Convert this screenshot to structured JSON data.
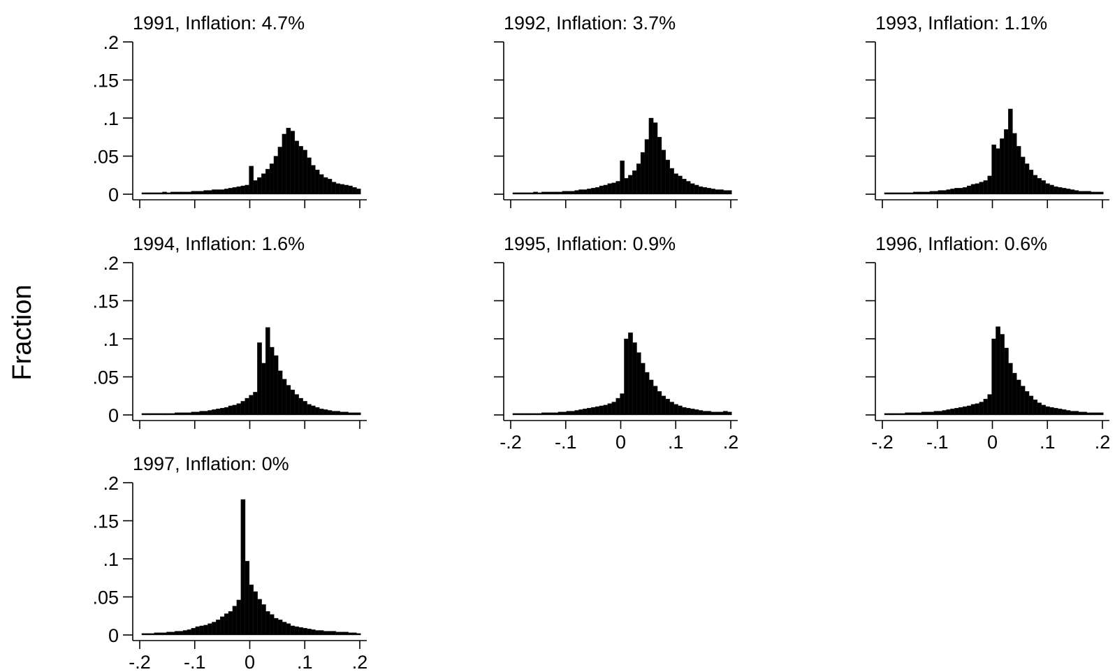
{
  "figure": {
    "ylabel": "Fraction"
  },
  "chart_data": [
    {
      "type": "bar",
      "title": "1991, Inflation: 4.7%",
      "xlim": [
        -0.2,
        0.2
      ],
      "ylim": [
        0,
        0.2
      ],
      "xticks": [
        -0.2,
        -0.1,
        0,
        0.1,
        0.2
      ],
      "xtick_labels": [
        "",
        "",
        "",
        "",
        ""
      ],
      "yticks": [
        0,
        0.05,
        0.1,
        0.15,
        0.2
      ],
      "ytick_labels": [
        "0",
        ".05",
        ".1",
        ".15",
        ".2"
      ],
      "bin_width": 0.0075,
      "x": [
        -0.1925,
        -0.185,
        -0.1775,
        -0.17,
        -0.1625,
        -0.155,
        -0.1475,
        -0.14,
        -0.1325,
        -0.125,
        -0.1175,
        -0.11,
        -0.1025,
        -0.095,
        -0.0875,
        -0.08,
        -0.0725,
        -0.065,
        -0.0575,
        -0.05,
        -0.0425,
        -0.035,
        -0.0275,
        -0.02,
        -0.0125,
        -0.005,
        0.0025,
        0.01,
        0.0175,
        0.025,
        0.0325,
        0.04,
        0.0475,
        0.055,
        0.0625,
        0.07,
        0.0775,
        0.085,
        0.0925,
        0.1,
        0.1075,
        0.115,
        0.1225,
        0.13,
        0.1375,
        0.145,
        0.1525,
        0.16,
        0.1675,
        0.175,
        0.1825,
        0.19,
        0.1975
      ],
      "values": [
        0.002,
        0.002,
        0.002,
        0.002,
        0.002,
        0.003,
        0.002,
        0.003,
        0.003,
        0.003,
        0.003,
        0.003,
        0.004,
        0.004,
        0.004,
        0.005,
        0.005,
        0.006,
        0.006,
        0.006,
        0.007,
        0.008,
        0.009,
        0.01,
        0.011,
        0.012,
        0.037,
        0.018,
        0.022,
        0.027,
        0.033,
        0.04,
        0.05,
        0.062,
        0.079,
        0.087,
        0.083,
        0.07,
        0.063,
        0.058,
        0.048,
        0.038,
        0.032,
        0.026,
        0.022,
        0.02,
        0.016,
        0.014,
        0.013,
        0.012,
        0.011,
        0.009,
        0.007
      ]
    },
    {
      "type": "bar",
      "title": "1992, Inflation: 3.7%",
      "xlim": [
        -0.2,
        0.2
      ],
      "ylim": [
        0,
        0.2
      ],
      "xticks": [
        -0.2,
        -0.1,
        0,
        0.1,
        0.2
      ],
      "xtick_labels": [
        "",
        "",
        "",
        "",
        ""
      ],
      "yticks": [
        0,
        0.05,
        0.1,
        0.15,
        0.2
      ],
      "ytick_labels": [
        "",
        "",
        "",
        "",
        ""
      ],
      "bin_width": 0.0075,
      "x": [
        -0.1925,
        -0.185,
        -0.1775,
        -0.17,
        -0.1625,
        -0.155,
        -0.1475,
        -0.14,
        -0.1325,
        -0.125,
        -0.1175,
        -0.11,
        -0.1025,
        -0.095,
        -0.0875,
        -0.08,
        -0.0725,
        -0.065,
        -0.0575,
        -0.05,
        -0.0425,
        -0.035,
        -0.0275,
        -0.02,
        -0.0125,
        -0.005,
        0.0025,
        0.01,
        0.0175,
        0.025,
        0.0325,
        0.04,
        0.0475,
        0.055,
        0.0625,
        0.07,
        0.0775,
        0.085,
        0.0925,
        0.1,
        0.1075,
        0.115,
        0.1225,
        0.13,
        0.1375,
        0.145,
        0.1525,
        0.16,
        0.1675,
        0.175,
        0.1825,
        0.19,
        0.1975
      ],
      "values": [
        0.002,
        0.002,
        0.002,
        0.002,
        0.002,
        0.003,
        0.002,
        0.003,
        0.003,
        0.003,
        0.003,
        0.003,
        0.004,
        0.004,
        0.004,
        0.005,
        0.006,
        0.006,
        0.007,
        0.008,
        0.009,
        0.011,
        0.012,
        0.014,
        0.015,
        0.017,
        0.044,
        0.021,
        0.025,
        0.031,
        0.04,
        0.055,
        0.072,
        0.1,
        0.094,
        0.075,
        0.058,
        0.045,
        0.034,
        0.027,
        0.024,
        0.02,
        0.017,
        0.014,
        0.012,
        0.01,
        0.009,
        0.008,
        0.007,
        0.006,
        0.006,
        0.005,
        0.005
      ]
    },
    {
      "type": "bar",
      "title": "1993, Inflation: 1.1%",
      "xlim": [
        -0.2,
        0.2
      ],
      "ylim": [
        0,
        0.2
      ],
      "xticks": [
        -0.2,
        -0.1,
        0,
        0.1,
        0.2
      ],
      "xtick_labels": [
        "",
        "",
        "",
        "",
        ""
      ],
      "yticks": [
        0,
        0.05,
        0.1,
        0.15,
        0.2
      ],
      "ytick_labels": [
        "",
        "",
        "",
        "",
        ""
      ],
      "bin_width": 0.0075,
      "x": [
        -0.1925,
        -0.185,
        -0.1775,
        -0.17,
        -0.1625,
        -0.155,
        -0.1475,
        -0.14,
        -0.1325,
        -0.125,
        -0.1175,
        -0.11,
        -0.1025,
        -0.095,
        -0.0875,
        -0.08,
        -0.0725,
        -0.065,
        -0.0575,
        -0.05,
        -0.0425,
        -0.035,
        -0.0275,
        -0.02,
        -0.0125,
        -0.005,
        0.0025,
        0.01,
        0.0175,
        0.025,
        0.0325,
        0.04,
        0.0475,
        0.055,
        0.0625,
        0.07,
        0.0775,
        0.085,
        0.0925,
        0.1,
        0.1075,
        0.115,
        0.1225,
        0.13,
        0.1375,
        0.145,
        0.1525,
        0.16,
        0.1675,
        0.175,
        0.1825,
        0.19,
        0.1975
      ],
      "values": [
        0.002,
        0.002,
        0.002,
        0.002,
        0.002,
        0.002,
        0.002,
        0.003,
        0.003,
        0.003,
        0.003,
        0.004,
        0.004,
        0.005,
        0.005,
        0.006,
        0.007,
        0.008,
        0.008,
        0.009,
        0.011,
        0.013,
        0.014,
        0.016,
        0.018,
        0.024,
        0.065,
        0.06,
        0.073,
        0.085,
        0.112,
        0.08,
        0.063,
        0.049,
        0.04,
        0.032,
        0.025,
        0.021,
        0.018,
        0.014,
        0.012,
        0.01,
        0.009,
        0.008,
        0.007,
        0.006,
        0.005,
        0.004,
        0.004,
        0.004,
        0.003,
        0.003,
        0.003
      ]
    },
    {
      "type": "bar",
      "title": "1994, Inflation: 1.6%",
      "xlim": [
        -0.2,
        0.2
      ],
      "ylim": [
        0,
        0.2
      ],
      "xticks": [
        -0.2,
        -0.1,
        0,
        0.1,
        0.2
      ],
      "xtick_labels": [
        "",
        "",
        "",
        "",
        ""
      ],
      "yticks": [
        0,
        0.05,
        0.1,
        0.15,
        0.2
      ],
      "ytick_labels": [
        "0",
        ".05",
        ".1",
        ".15",
        ".2"
      ],
      "bin_width": 0.0075,
      "x": [
        -0.1925,
        -0.185,
        -0.1775,
        -0.17,
        -0.1625,
        -0.155,
        -0.1475,
        -0.14,
        -0.1325,
        -0.125,
        -0.1175,
        -0.11,
        -0.1025,
        -0.095,
        -0.0875,
        -0.08,
        -0.0725,
        -0.065,
        -0.0575,
        -0.05,
        -0.0425,
        -0.035,
        -0.0275,
        -0.02,
        -0.0125,
        -0.005,
        0.0025,
        0.01,
        0.0175,
        0.025,
        0.0325,
        0.04,
        0.0475,
        0.055,
        0.0625,
        0.07,
        0.0775,
        0.085,
        0.0925,
        0.1,
        0.1075,
        0.115,
        0.1225,
        0.13,
        0.1375,
        0.145,
        0.1525,
        0.16,
        0.1675,
        0.175,
        0.1825,
        0.19,
        0.1975
      ],
      "values": [
        0.002,
        0.002,
        0.002,
        0.002,
        0.002,
        0.002,
        0.002,
        0.002,
        0.003,
        0.003,
        0.003,
        0.003,
        0.004,
        0.004,
        0.005,
        0.005,
        0.006,
        0.007,
        0.008,
        0.009,
        0.01,
        0.012,
        0.013,
        0.015,
        0.018,
        0.022,
        0.026,
        0.03,
        0.095,
        0.068,
        0.115,
        0.089,
        0.078,
        0.058,
        0.047,
        0.039,
        0.033,
        0.027,
        0.022,
        0.018,
        0.014,
        0.012,
        0.01,
        0.008,
        0.007,
        0.006,
        0.005,
        0.005,
        0.004,
        0.004,
        0.003,
        0.003,
        0.003
      ]
    },
    {
      "type": "bar",
      "title": "1995, Inflation: 0.9%",
      "xlim": [
        -0.2,
        0.2
      ],
      "ylim": [
        0,
        0.2
      ],
      "xticks": [
        -0.2,
        -0.1,
        0,
        0.1,
        0.2
      ],
      "xtick_labels": [
        "-.2",
        "-.1",
        "0",
        ".1",
        ".2"
      ],
      "yticks": [
        0,
        0.05,
        0.1,
        0.15,
        0.2
      ],
      "ytick_labels": [
        "",
        "",
        "",
        "",
        ""
      ],
      "bin_width": 0.0075,
      "x": [
        -0.1925,
        -0.185,
        -0.1775,
        -0.17,
        -0.1625,
        -0.155,
        -0.1475,
        -0.14,
        -0.1325,
        -0.125,
        -0.1175,
        -0.11,
        -0.1025,
        -0.095,
        -0.0875,
        -0.08,
        -0.0725,
        -0.065,
        -0.0575,
        -0.05,
        -0.0425,
        -0.035,
        -0.0275,
        -0.02,
        -0.0125,
        -0.005,
        0.0025,
        0.01,
        0.0175,
        0.025,
        0.0325,
        0.04,
        0.0475,
        0.055,
        0.0625,
        0.07,
        0.0775,
        0.085,
        0.0925,
        0.1,
        0.1075,
        0.115,
        0.1225,
        0.13,
        0.1375,
        0.145,
        0.1525,
        0.16,
        0.1675,
        0.175,
        0.1825,
        0.19,
        0.1975
      ],
      "values": [
        0.002,
        0.002,
        0.002,
        0.002,
        0.002,
        0.002,
        0.002,
        0.003,
        0.003,
        0.003,
        0.003,
        0.004,
        0.004,
        0.005,
        0.005,
        0.006,
        0.007,
        0.008,
        0.009,
        0.01,
        0.011,
        0.012,
        0.013,
        0.015,
        0.017,
        0.022,
        0.028,
        0.1,
        0.108,
        0.095,
        0.082,
        0.068,
        0.056,
        0.046,
        0.038,
        0.031,
        0.025,
        0.021,
        0.017,
        0.014,
        0.012,
        0.01,
        0.009,
        0.008,
        0.007,
        0.006,
        0.005,
        0.005,
        0.004,
        0.004,
        0.004,
        0.005,
        0.004
      ]
    },
    {
      "type": "bar",
      "title": "1996, Inflation: 0.6%",
      "xlim": [
        -0.2,
        0.2
      ],
      "ylim": [
        0,
        0.2
      ],
      "xticks": [
        -0.2,
        -0.1,
        0,
        0.1,
        0.2
      ],
      "xtick_labels": [
        "-.2",
        "-.1",
        "0",
        ".1",
        ".2"
      ],
      "yticks": [
        0,
        0.05,
        0.1,
        0.15,
        0.2
      ],
      "ytick_labels": [
        "",
        "",
        "",
        "",
        ""
      ],
      "bin_width": 0.0075,
      "x": [
        -0.1925,
        -0.185,
        -0.1775,
        -0.17,
        -0.1625,
        -0.155,
        -0.1475,
        -0.14,
        -0.1325,
        -0.125,
        -0.1175,
        -0.11,
        -0.1025,
        -0.095,
        -0.0875,
        -0.08,
        -0.0725,
        -0.065,
        -0.0575,
        -0.05,
        -0.0425,
        -0.035,
        -0.0275,
        -0.02,
        -0.0125,
        -0.005,
        0.0025,
        0.01,
        0.0175,
        0.025,
        0.0325,
        0.04,
        0.0475,
        0.055,
        0.0625,
        0.07,
        0.0775,
        0.085,
        0.0925,
        0.1,
        0.1075,
        0.115,
        0.1225,
        0.13,
        0.1375,
        0.145,
        0.1525,
        0.16,
        0.1675,
        0.175,
        0.1825,
        0.19,
        0.1975
      ],
      "values": [
        0.002,
        0.002,
        0.002,
        0.002,
        0.002,
        0.003,
        0.003,
        0.003,
        0.003,
        0.004,
        0.004,
        0.004,
        0.005,
        0.005,
        0.006,
        0.007,
        0.008,
        0.009,
        0.01,
        0.011,
        0.012,
        0.014,
        0.015,
        0.017,
        0.021,
        0.027,
        0.1,
        0.116,
        0.106,
        0.088,
        0.068,
        0.055,
        0.046,
        0.038,
        0.031,
        0.025,
        0.02,
        0.016,
        0.013,
        0.011,
        0.01,
        0.009,
        0.008,
        0.007,
        0.006,
        0.005,
        0.005,
        0.004,
        0.004,
        0.003,
        0.003,
        0.003,
        0.003
      ]
    },
    {
      "type": "bar",
      "title": "1997, Inflation: 0%",
      "xlim": [
        -0.2,
        0.2
      ],
      "ylim": [
        0,
        0.2
      ],
      "xticks": [
        -0.2,
        -0.1,
        0,
        0.1,
        0.2
      ],
      "xtick_labels": [
        "-.2",
        "-.1",
        "0",
        ".1",
        ".2"
      ],
      "yticks": [
        0,
        0.05,
        0.1,
        0.15,
        0.2
      ],
      "ytick_labels": [
        "0",
        ".05",
        ".1",
        ".15",
        ".2"
      ],
      "bin_width": 0.0075,
      "x": [
        -0.1925,
        -0.185,
        -0.1775,
        -0.17,
        -0.1625,
        -0.155,
        -0.1475,
        -0.14,
        -0.1325,
        -0.125,
        -0.1175,
        -0.11,
        -0.1025,
        -0.095,
        -0.0875,
        -0.08,
        -0.0725,
        -0.065,
        -0.0575,
        -0.05,
        -0.0425,
        -0.035,
        -0.0275,
        -0.02,
        -0.0125,
        -0.005,
        0.0025,
        0.01,
        0.0175,
        0.025,
        0.0325,
        0.04,
        0.0475,
        0.055,
        0.0625,
        0.07,
        0.0775,
        0.085,
        0.0925,
        0.1,
        0.1075,
        0.115,
        0.1225,
        0.13,
        0.1375,
        0.145,
        0.1525,
        0.16,
        0.1675,
        0.175,
        0.1825,
        0.19,
        0.1975
      ],
      "values": [
        0.002,
        0.002,
        0.002,
        0.003,
        0.003,
        0.003,
        0.004,
        0.004,
        0.005,
        0.005,
        0.006,
        0.007,
        0.009,
        0.011,
        0.012,
        0.013,
        0.015,
        0.017,
        0.02,
        0.024,
        0.028,
        0.031,
        0.038,
        0.046,
        0.178,
        0.097,
        0.066,
        0.057,
        0.047,
        0.04,
        0.031,
        0.027,
        0.022,
        0.02,
        0.017,
        0.015,
        0.012,
        0.011,
        0.01,
        0.009,
        0.008,
        0.007,
        0.006,
        0.006,
        0.005,
        0.005,
        0.005,
        0.004,
        0.004,
        0.004,
        0.003,
        0.003,
        0.002
      ]
    }
  ]
}
